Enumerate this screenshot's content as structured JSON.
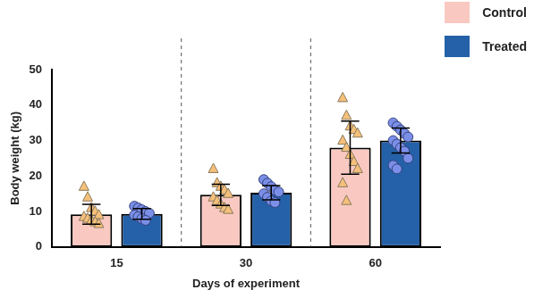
{
  "chart_data": {
    "type": "bar",
    "x_label": "Days of experiment",
    "y_label": "Body weight (kg)",
    "categories": [
      "15",
      "30",
      "60"
    ],
    "ylim": [
      0,
      50
    ],
    "yticks": [
      0,
      10,
      20,
      30,
      40,
      50
    ],
    "grid": false,
    "legend": "top-right",
    "series": [
      {
        "name": "Control",
        "color": "#f9c9c1",
        "marker": "triangle",
        "values": [
          9.2,
          14.7,
          28
        ],
        "error": [
          2.8,
          3,
          7.5
        ],
        "points": [
          [
            17,
            14,
            11,
            10,
            9,
            8.5,
            8,
            7.5,
            7,
            6.5
          ],
          [
            22,
            18,
            17,
            16,
            15,
            14,
            13,
            12,
            11,
            10.5
          ],
          [
            42,
            37,
            34,
            33,
            32,
            30,
            28,
            26,
            24,
            22,
            18,
            13
          ]
        ]
      },
      {
        "name": "Treated",
        "color": "#2561a8",
        "marker": "circle",
        "values": [
          9.3,
          15.3,
          30
        ],
        "error": [
          1.5,
          2,
          3.5
        ],
        "points": [
          [
            11.5,
            11,
            10.5,
            10,
            9.5,
            9,
            8.5,
            8,
            7.5
          ],
          [
            19,
            18,
            17,
            16,
            15.5,
            15,
            14,
            13,
            12.5
          ],
          [
            35,
            34,
            33,
            32,
            31,
            30,
            29,
            28,
            27,
            25,
            23,
            22
          ]
        ]
      }
    ]
  }
}
